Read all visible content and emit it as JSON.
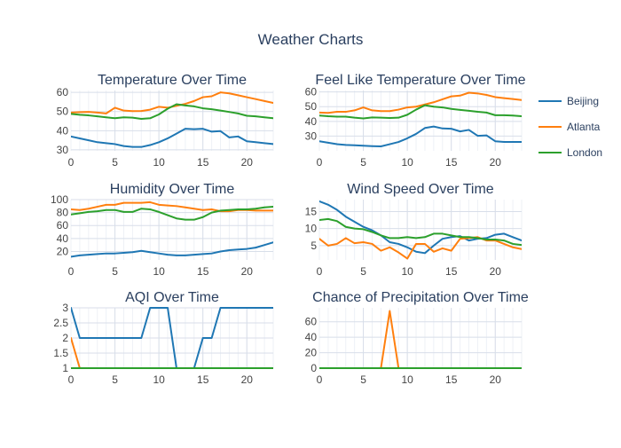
{
  "page": {
    "title": "Weather Charts"
  },
  "legend": {
    "position": "right",
    "items": [
      {
        "name": "Beijing",
        "color": "#1f77b4"
      },
      {
        "name": "Atlanta",
        "color": "#ff7f0e"
      },
      {
        "name": "London",
        "color": "#2ca02c"
      }
    ]
  },
  "chart_data": [
    {
      "type": "line",
      "title": "Temperature Over Time",
      "xlabel": "",
      "ylabel": "",
      "xlim": [
        0,
        23
      ],
      "ylim": [
        29.5,
        61
      ],
      "grid": true,
      "xticks": [
        0,
        5,
        10,
        15,
        20
      ],
      "yticks": [
        30,
        40,
        50,
        60
      ],
      "x": [
        0,
        1,
        2,
        3,
        4,
        5,
        6,
        7,
        8,
        9,
        10,
        11,
        12,
        13,
        14,
        15,
        16,
        17,
        18,
        19,
        20,
        21,
        22,
        23
      ],
      "series": [
        {
          "name": "Beijing",
          "color": "#1f77b4",
          "values": [
            37,
            36,
            35,
            34,
            33.5,
            33,
            32,
            31.5,
            31.5,
            32.5,
            34,
            36,
            38.5,
            41,
            40.8,
            41,
            39.5,
            39.8,
            36.5,
            37,
            34.5,
            34,
            33.5,
            33
          ]
        },
        {
          "name": "Atlanta",
          "color": "#ff7f0e",
          "values": [
            49.5,
            49.7,
            49.8,
            49.5,
            49,
            52,
            50.5,
            50.2,
            50.3,
            51,
            52.5,
            52,
            53,
            54,
            55.5,
            57.5,
            58,
            60,
            59.5,
            58.5,
            57.5,
            56.5,
            55.5,
            54.5
          ]
        },
        {
          "name": "London",
          "color": "#2ca02c",
          "values": [
            48.8,
            48.3,
            48,
            47.5,
            47,
            46.5,
            47,
            46.8,
            46.2,
            46.5,
            48.5,
            51.5,
            53.8,
            53.2,
            52.7,
            51.7,
            51.2,
            50.5,
            49.8,
            49,
            47.8,
            47.5,
            47,
            46.5
          ]
        }
      ]
    },
    {
      "type": "line",
      "title": "Feel Like Temperature Over Time",
      "xlabel": "",
      "ylabel": "",
      "xlim": [
        0,
        23
      ],
      "ylim": [
        20,
        61
      ],
      "grid": true,
      "xticks": [
        0,
        5,
        10,
        15,
        20
      ],
      "yticks": [
        30,
        40,
        50,
        60
      ],
      "x": [
        0,
        1,
        2,
        3,
        4,
        5,
        6,
        7,
        8,
        9,
        10,
        11,
        12,
        13,
        14,
        15,
        16,
        17,
        18,
        19,
        20,
        21,
        22,
        23
      ],
      "series": [
        {
          "name": "Beijing",
          "color": "#1f77b4",
          "values": [
            26.5,
            25.5,
            24.5,
            24,
            23.8,
            23.5,
            23.2,
            23,
            24.5,
            26,
            28.5,
            31.5,
            35.5,
            36.5,
            35.2,
            35,
            33.2,
            34.2,
            30.2,
            30.5,
            26.5,
            26,
            26,
            26
          ]
        },
        {
          "name": "Atlanta",
          "color": "#ff7f0e",
          "values": [
            46,
            45.8,
            46.5,
            46.5,
            47.5,
            49.5,
            47.5,
            47,
            47,
            48,
            49.5,
            50,
            51.5,
            53,
            55,
            57,
            57.5,
            59.5,
            59,
            58,
            56.5,
            55.8,
            55.2,
            54.5
          ]
        },
        {
          "name": "London",
          "color": "#2ca02c",
          "values": [
            44,
            43.5,
            43.2,
            43.2,
            42.5,
            42,
            42.7,
            42.5,
            42.3,
            42.5,
            44.5,
            48,
            51,
            50,
            49.5,
            48.5,
            47.8,
            47.2,
            46.5,
            46,
            44.2,
            44.2,
            44,
            43.5
          ]
        }
      ]
    },
    {
      "type": "line",
      "title": "Humidity Over Time",
      "xlabel": "",
      "ylabel": "",
      "xlim": [
        0,
        23
      ],
      "ylim": [
        7,
        100
      ],
      "grid": true,
      "xticks": [
        0,
        5,
        10,
        15,
        20
      ],
      "yticks": [
        20,
        40,
        60,
        80,
        100
      ],
      "x": [
        0,
        1,
        2,
        3,
        4,
        5,
        6,
        7,
        8,
        9,
        10,
        11,
        12,
        13,
        14,
        15,
        16,
        17,
        18,
        19,
        20,
        21,
        22,
        23
      ],
      "series": [
        {
          "name": "Beijing",
          "color": "#1f77b4",
          "values": [
            12,
            14,
            15,
            16,
            17,
            17,
            18,
            19,
            21,
            19,
            17,
            15,
            14,
            14,
            15,
            16,
            17,
            20,
            22,
            23,
            24,
            26,
            30,
            34
          ]
        },
        {
          "name": "Atlanta",
          "color": "#ff7f0e",
          "values": [
            85,
            84,
            86,
            89,
            92,
            92,
            95,
            95,
            95,
            96,
            92,
            91,
            90,
            88,
            86,
            84,
            85,
            82,
            82,
            84,
            84,
            83,
            83,
            83
          ]
        },
        {
          "name": "London",
          "color": "#2ca02c",
          "values": [
            77,
            79,
            81,
            82,
            84,
            84,
            81,
            81,
            86,
            85,
            81,
            76,
            71,
            69,
            69,
            73,
            80,
            83,
            84,
            85,
            85,
            86,
            88,
            89
          ]
        }
      ]
    },
    {
      "type": "line",
      "title": "Wind Speed Over Time",
      "xlabel": "",
      "ylabel": "",
      "xlim": [
        0,
        23
      ],
      "ylim": [
        0.8,
        18.5
      ],
      "grid": true,
      "xticks": [
        0,
        5,
        10,
        15,
        20
      ],
      "yticks": [
        5,
        10,
        15
      ],
      "x": [
        0,
        1,
        2,
        3,
        4,
        5,
        6,
        7,
        8,
        9,
        10,
        11,
        12,
        13,
        14,
        15,
        16,
        17,
        18,
        19,
        20,
        21,
        22,
        23
      ],
      "series": [
        {
          "name": "Beijing",
          "color": "#1f77b4",
          "values": [
            18,
            17,
            15.5,
            13.5,
            12,
            10.5,
            9.5,
            8,
            6,
            5.5,
            4.5,
            3.2,
            2.8,
            5,
            7,
            7.5,
            7.8,
            6.5,
            7,
            7.2,
            8.2,
            8.5,
            7.5,
            6.5
          ]
        },
        {
          "name": "Atlanta",
          "color": "#ff7f0e",
          "values": [
            7,
            5,
            5.5,
            7.2,
            5.7,
            6,
            5.5,
            3.5,
            4.5,
            3,
            1.2,
            5.5,
            5.5,
            3.2,
            4.2,
            3.5,
            7,
            7.2,
            7.5,
            6.5,
            6.5,
            5.5,
            4.5,
            4
          ]
        },
        {
          "name": "London",
          "color": "#2ca02c",
          "values": [
            12.5,
            12.8,
            12.2,
            10.5,
            10,
            9.8,
            9,
            8,
            7.2,
            7.2,
            7.5,
            7.2,
            7.5,
            8.5,
            8.5,
            8,
            7.5,
            7.5,
            7.2,
            6.8,
            6.8,
            6.5,
            5.5,
            5.2
          ]
        }
      ]
    },
    {
      "type": "line",
      "title": "AQI Over Time",
      "xlabel": "",
      "ylabel": "",
      "xlim": [
        0,
        23
      ],
      "ylim": [
        1,
        3
      ],
      "grid": true,
      "xticks": [
        0,
        5,
        10,
        15,
        20
      ],
      "yticks": [
        1,
        1.5,
        2,
        2.5,
        3
      ],
      "x": [
        0,
        1,
        2,
        3,
        4,
        5,
        6,
        7,
        8,
        9,
        10,
        11,
        12,
        13,
        14,
        15,
        16,
        17,
        18,
        19,
        20,
        21,
        22,
        23
      ],
      "series": [
        {
          "name": "Beijing",
          "color": "#1f77b4",
          "values": [
            3,
            2,
            2,
            2,
            2,
            2,
            2,
            2,
            2,
            3,
            3,
            3,
            1,
            1,
            1,
            2,
            2,
            3,
            3,
            3,
            3,
            3,
            3,
            3
          ]
        },
        {
          "name": "Atlanta",
          "color": "#ff7f0e",
          "values": [
            2,
            1,
            1,
            1,
            1,
            1,
            1,
            1,
            1,
            1,
            1,
            1,
            1,
            1,
            1,
            1,
            1,
            1,
            1,
            1,
            1,
            1,
            1,
            1
          ]
        },
        {
          "name": "London",
          "color": "#2ca02c",
          "values": [
            1,
            1,
            1,
            1,
            1,
            1,
            1,
            1,
            1,
            1,
            1,
            1,
            1,
            1,
            1,
            1,
            1,
            1,
            1,
            1,
            1,
            1,
            1,
            1
          ]
        }
      ]
    },
    {
      "type": "line",
      "title": "Chance of Precipitation Over Time",
      "xlabel": "",
      "ylabel": "",
      "xlim": [
        0,
        23
      ],
      "ylim": [
        0,
        78
      ],
      "grid": true,
      "xticks": [
        0,
        5,
        10,
        15,
        20
      ],
      "yticks": [
        0,
        20,
        40,
        60
      ],
      "x": [
        0,
        1,
        2,
        3,
        4,
        5,
        6,
        7,
        8,
        9,
        10,
        11,
        12,
        13,
        14,
        15,
        16,
        17,
        18,
        19,
        20,
        21,
        22,
        23
      ],
      "series": [
        {
          "name": "Beijing",
          "color": "#1f77b4",
          "values": [
            0,
            0,
            0,
            0,
            0,
            0,
            0,
            0,
            0,
            0,
            0,
            0,
            0,
            0,
            0,
            0,
            0,
            0,
            0,
            0,
            0,
            0,
            0,
            0
          ]
        },
        {
          "name": "Atlanta",
          "color": "#ff7f0e",
          "values": [
            0,
            0,
            0,
            0,
            0,
            0,
            0,
            0,
            74,
            0,
            0,
            0,
            0,
            0,
            0,
            0,
            0,
            0,
            0,
            0,
            0,
            0,
            0,
            0
          ]
        },
        {
          "name": "London",
          "color": "#2ca02c",
          "values": [
            0,
            0,
            0,
            0,
            0,
            0,
            0,
            0,
            0,
            0,
            0,
            0,
            0,
            0,
            0,
            0,
            0,
            0,
            0,
            0,
            0,
            0,
            0,
            0
          ]
        }
      ]
    }
  ]
}
